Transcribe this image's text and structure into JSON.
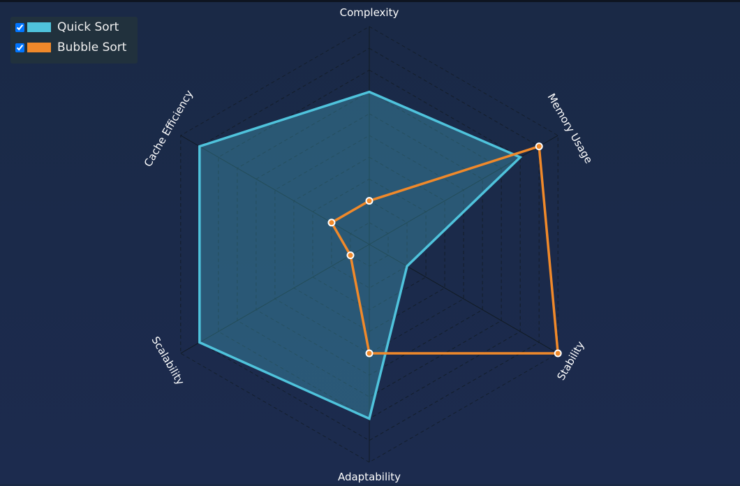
{
  "chart_data": {
    "type": "radar",
    "categories": [
      "Complexity",
      "Memory Usage",
      "Stability",
      "Adaptability",
      "Scalability",
      "Cache Efficiency"
    ],
    "series": [
      {
        "name": "Quick Sort",
        "color": "#4fc3dc",
        "values": [
          7,
          8,
          2,
          8,
          9,
          9
        ]
      },
      {
        "name": "Bubble Sort",
        "color": "#f0892a",
        "values": [
          2,
          9,
          10,
          5,
          1,
          2
        ]
      }
    ],
    "rlim": [
      0,
      10
    ],
    "rticks": [
      1,
      2,
      3,
      4,
      5,
      6,
      7,
      8,
      9,
      10
    ],
    "grid": true,
    "legend": "top-left"
  }
}
